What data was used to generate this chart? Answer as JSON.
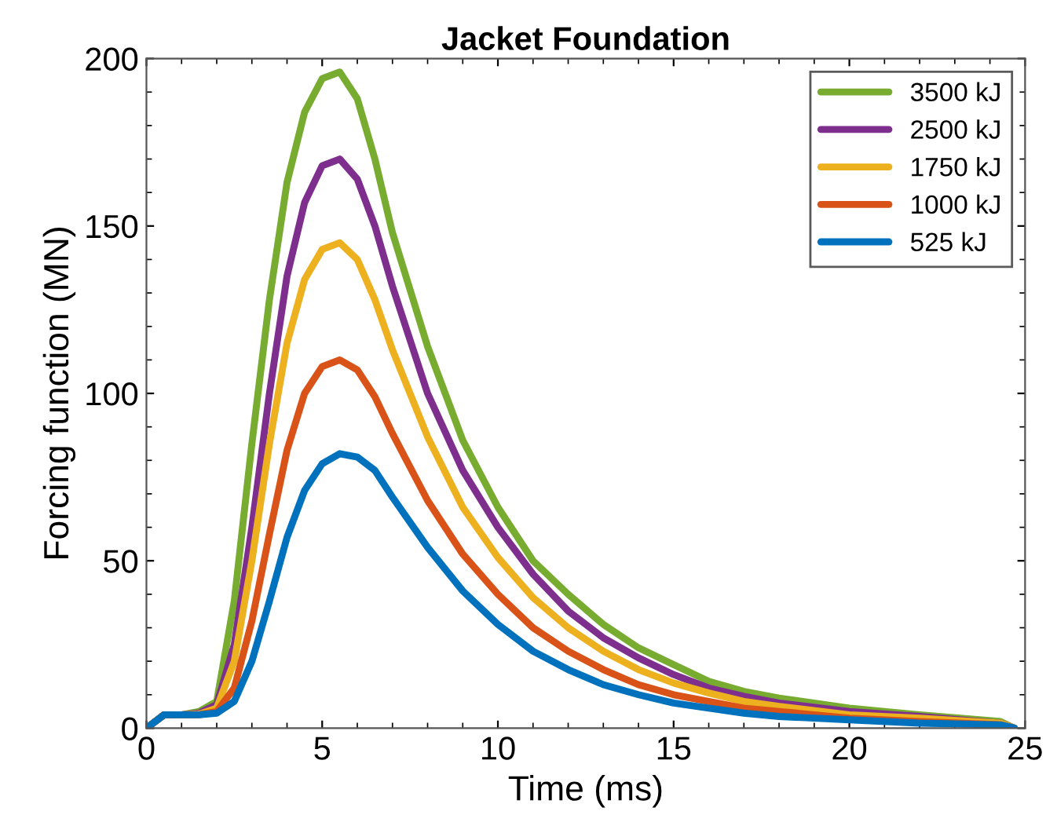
{
  "chart_data": {
    "type": "line",
    "title": "Jacket Foundation",
    "xlabel": "Time (ms)",
    "ylabel": "Forcing function (MN)",
    "x": [
      0,
      0.5,
      1,
      1.5,
      2,
      2.5,
      3,
      3.5,
      4,
      4.5,
      5,
      5.5,
      6,
      6.5,
      7,
      8,
      9,
      10,
      11,
      12,
      13,
      14,
      15,
      16,
      17,
      18,
      20,
      22,
      24.3,
      24.7
    ],
    "series": [
      {
        "name": "3500 kJ",
        "color": "#77ac30",
        "values": [
          0,
          4,
          4,
          5,
          8,
          38,
          85,
          128,
          163,
          184,
          194,
          196,
          188,
          170,
          148,
          114,
          86,
          66,
          50,
          40,
          31,
          24,
          19,
          14,
          11,
          9,
          6,
          4,
          2,
          0
        ]
      },
      {
        "name": "2500 kJ",
        "color": "#7e2f8e",
        "values": [
          0,
          4,
          4,
          4.5,
          7,
          25,
          60,
          100,
          135,
          157,
          168,
          170,
          164,
          150,
          132,
          100,
          77,
          60,
          46,
          35,
          27,
          21,
          16,
          12,
          9.5,
          7.5,
          5,
          3.5,
          1.5,
          0
        ]
      },
      {
        "name": "1750 kJ",
        "color": "#edb120",
        "values": [
          0,
          4,
          4,
          4.2,
          6,
          20,
          50,
          85,
          115,
          134,
          143,
          145,
          140,
          128,
          113,
          87,
          66,
          51,
          39,
          30,
          23,
          17.5,
          13.5,
          10.5,
          8,
          6.5,
          4,
          3,
          1.5,
          0
        ]
      },
      {
        "name": "1000 kJ",
        "color": "#d95319",
        "values": [
          0,
          4,
          4,
          4,
          5,
          12,
          32,
          58,
          83,
          100,
          108,
          110,
          107,
          99,
          88,
          68,
          52,
          40,
          30,
          23,
          17.5,
          13,
          10,
          8,
          6,
          5,
          3,
          2,
          1,
          0
        ]
      },
      {
        "name": "525 kJ",
        "color": "#0072bd",
        "values": [
          0,
          4,
          4,
          4,
          4.5,
          8,
          20,
          38,
          57,
          71,
          79,
          82,
          81,
          77,
          69,
          54,
          41,
          31,
          23,
          17.5,
          13,
          10,
          7.5,
          6,
          4.5,
          3.5,
          2.5,
          1.5,
          1,
          0
        ]
      }
    ],
    "xlim": [
      0,
      25
    ],
    "xticks": [
      0,
      5,
      10,
      15,
      20,
      25
    ],
    "ylim": [
      0,
      200
    ],
    "yticks": [
      0,
      50,
      100,
      150,
      200
    ],
    "legend": "top right",
    "grid": false
  }
}
